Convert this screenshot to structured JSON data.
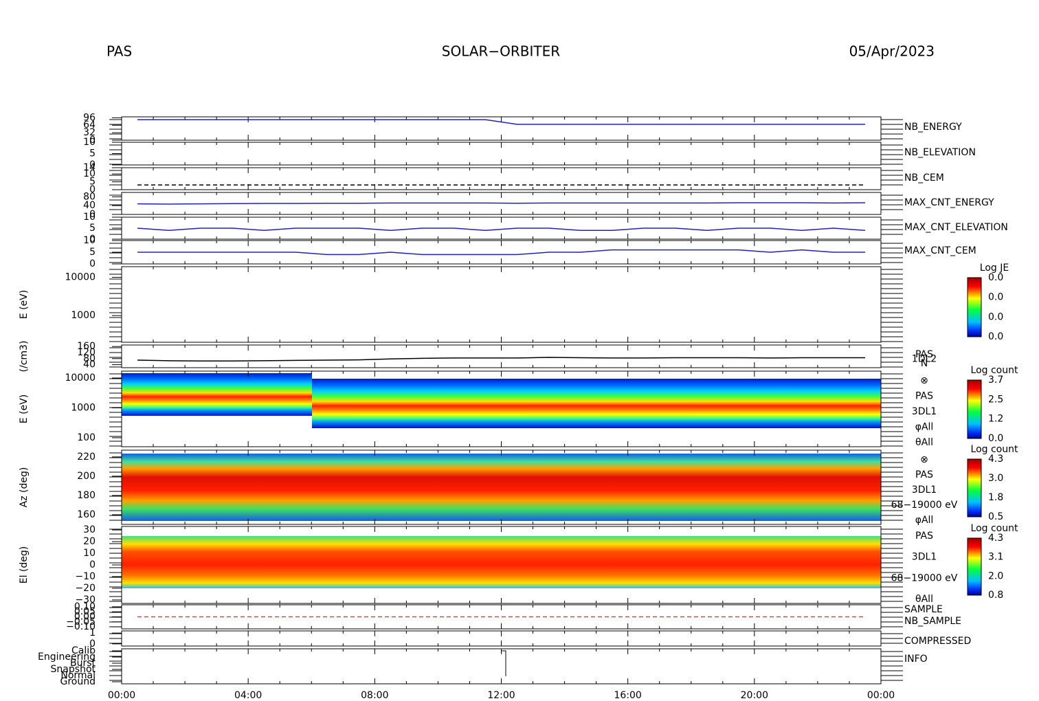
{
  "header": {
    "left": "PAS",
    "center": "SOLAR−ORBITER",
    "right": "05/Apr/2023"
  },
  "xaxis": {
    "ticks": [
      "00:00",
      "04:00",
      "08:00",
      "12:00",
      "16:00",
      "20:00",
      "00:00"
    ]
  },
  "panels": [
    {
      "labels": [
        {
          "text": "NB_ENERGY",
          "color": "#2020b0"
        }
      ],
      "ylim": [
        0,
        100
      ],
      "yticks": [
        0,
        32,
        64,
        96
      ],
      "series": {
        "color": "#2020c0",
        "values": [
          88,
          88,
          88,
          88,
          88,
          88,
          88,
          88,
          88,
          88,
          88,
          88,
          68,
          68,
          68,
          68,
          68,
          68,
          68,
          68,
          68,
          68,
          68,
          68
        ]
      }
    },
    {
      "labels": [
        {
          "text": "NB_ELEVATION",
          "color": "#2020b0"
        }
      ],
      "ylim": [
        0,
        10
      ],
      "yticks": [
        0,
        5,
        10
      ]
    },
    {
      "labels": [
        {
          "text": "NB_CEM",
          "color": "#2020b0"
        }
      ],
      "ylim": [
        0,
        14
      ],
      "yticks": [
        0,
        5,
        10,
        14
      ],
      "series": {
        "color": "#000000",
        "dashed": true,
        "values": [
          3,
          3,
          3,
          3,
          3,
          3,
          3,
          3,
          3,
          3,
          3,
          3,
          3,
          3,
          3,
          3,
          3,
          3,
          3,
          3,
          3,
          3,
          3,
          3
        ]
      }
    },
    {
      "labels": [
        {
          "text": "MAX_CNT_ENERGY",
          "color": "#2020b0"
        }
      ],
      "ylim": [
        0,
        100
      ],
      "yticks": [
        0,
        40,
        80
      ],
      "series": {
        "color": "#2020c0",
        "values": [
          48,
          47,
          48,
          49,
          50,
          50,
          51,
          51,
          52,
          52,
          52,
          52,
          51,
          52,
          52,
          52,
          52,
          52,
          52,
          53,
          53,
          53,
          52,
          53
        ]
      }
    },
    {
      "labels": [
        {
          "text": "MAX_CNT_ELEVATION",
          "color": "#2020b0"
        }
      ],
      "ylim": [
        0,
        10
      ],
      "yticks": [
        0,
        5,
        10
      ],
      "series": {
        "color": "#2020c0",
        "values": [
          5,
          4,
          5,
          5,
          4,
          5,
          5,
          5,
          4,
          5,
          5,
          4,
          5,
          5,
          4,
          4,
          5,
          5,
          4,
          5,
          5,
          4,
          5,
          4
        ]
      }
    },
    {
      "labels": [
        {
          "text": "MAX_CNT_CEM",
          "color": "#2020b0"
        }
      ],
      "ylim": [
        0,
        10
      ],
      "yticks": [
        0,
        5,
        10
      ],
      "series": {
        "color": "#2020c0",
        "values": [
          5,
          5,
          5,
          5,
          5,
          5,
          4,
          4,
          5,
          4,
          4,
          4,
          4,
          5,
          5,
          6,
          6,
          6,
          6,
          6,
          5,
          6,
          5,
          5
        ]
      }
    },
    {
      "ylabel": "E (eV)",
      "ylim": [
        200,
        19000
      ],
      "log": true,
      "yticks": [
        1000,
        10000
      ],
      "colorbar": {
        "title": "Log JE",
        "ticks": [
          "0.0",
          "0.0",
          "0.0",
          "0.0"
        ]
      }
    },
    {
      "ylabel": "(/cm3)",
      "ylim": [
        20,
        170
      ],
      "yticks": [
        40,
        80,
        120,
        160
      ],
      "notes": [
        "PAS",
        "1DL2",
        "N"
      ],
      "series": {
        "color": "#000000",
        "values": [
          70,
          66,
          64,
          64,
          66,
          68,
          70,
          72,
          78,
          82,
          84,
          84,
          84,
          88,
          86,
          84,
          84,
          86,
          86,
          86,
          84,
          86,
          86,
          86
        ]
      }
    },
    {
      "ylabel": "E (eV)",
      "ylim": [
        50,
        17000
      ],
      "log": true,
      "yticks": [
        100,
        1000,
        10000
      ],
      "colorbar": {
        "title": "Log count",
        "ticks": [
          "3.7",
          "2.5",
          "1.2",
          "0.0"
        ]
      },
      "notes": [
        "⊗",
        "PAS",
        "3DL1",
        "φAll",
        "θAll"
      ]
    },
    {
      "ylabel": "Az (deg)",
      "ylim": [
        150,
        227
      ],
      "yticks": [
        160,
        180,
        200,
        220
      ],
      "colorbar": {
        "title": "Log count",
        "ticks": [
          "4.3",
          "3.0",
          "1.8",
          "0.5"
        ]
      },
      "notes": [
        "⊗",
        "PAS",
        "3DL1",
        "68−19000 eV",
        "φAll"
      ]
    },
    {
      "ylabel": "El (deg)",
      "ylim": [
        -33,
        33
      ],
      "yticks": [
        {
          "value": -30,
          "label": "−30"
        },
        {
          "value": -20,
          "label": "−20"
        },
        {
          "value": -10,
          "label": "−10"
        },
        0,
        10,
        20,
        30
      ],
      "colorbar": {
        "title": "Log count",
        "ticks": [
          "4.3",
          "3.1",
          "2.0",
          "0.8"
        ]
      },
      "notes": [
        "PAS",
        "3DL1",
        "68−19000 eV",
        "θAll"
      ]
    },
    {
      "labels": [
        {
          "text": "SAMPLE",
          "color": "#2020b0"
        },
        {
          "text": "NB_SAMPLE",
          "color": "#e02020"
        }
      ],
      "ylim": [
        -0.12,
        0.12
      ],
      "yticks": [
        {
          "value": -0.1,
          "label": "−0.10"
        },
        {
          "value": -0.05,
          "label": "−0.05"
        },
        {
          "value": 0,
          "label": "0.00"
        },
        {
          "value": 0.05,
          "label": "0.05"
        },
        {
          "value": 0.1,
          "label": "0.10"
        }
      ],
      "series": {
        "color": "#e04040",
        "dashed": true,
        "values": [
          0,
          0,
          0,
          0,
          0,
          0,
          0,
          0,
          0,
          0,
          0,
          0,
          0,
          0,
          0,
          0,
          0,
          0,
          0,
          0,
          0,
          0,
          0,
          0
        ]
      }
    },
    {
      "labels": [
        {
          "text": "COMPRESSED",
          "color": "#2020b0"
        }
      ],
      "ylim": [
        -0.2,
        1.2
      ],
      "yticks": [
        0,
        1
      ]
    },
    {
      "labels": [
        {
          "text": "INFO",
          "color": "#2020b0"
        }
      ],
      "yticks": [
        "Calib",
        "Engineering",
        "Burst",
        "Snapshot",
        "Normal",
        "Ground"
      ]
    }
  ]
}
